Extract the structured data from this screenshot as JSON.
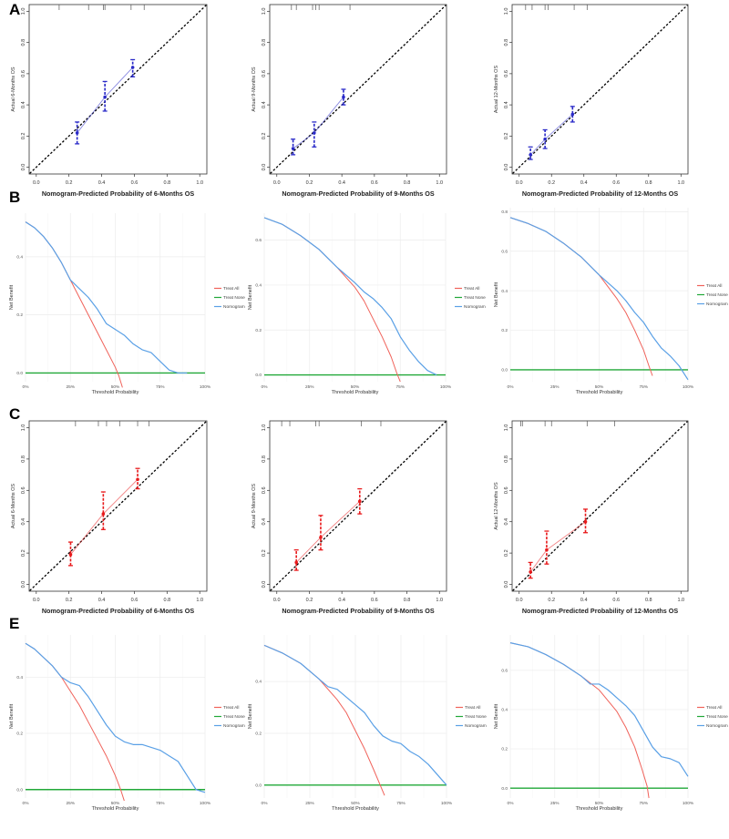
{
  "colors": {
    "blue": "#2a2ac8",
    "red": "#e8191b",
    "treat_all": "#f0625a",
    "treat_none": "#21a838",
    "nomogram": "#5aa0e6",
    "axis": "#333333"
  },
  "chart_data": [
    {
      "id": "A1",
      "panel_letter": "A",
      "type": "scatter",
      "subtype": "calibration",
      "color_key": "blue",
      "xlabel": "Nomogram-Predicted Probability of 6-Months OS",
      "ylabel": "Actual 6-Months OS",
      "xlim": [
        0,
        1
      ],
      "ylim": [
        0,
        1
      ],
      "ticks": [
        "0.0",
        "0.2",
        "0.4",
        "0.6",
        "0.8",
        "1.0"
      ],
      "rug": [
        0.14,
        0.32,
        0.41,
        0.42,
        0.58,
        0.66
      ],
      "points": [
        {
          "x": 0.25,
          "y": 0.22,
          "lo": 0.15,
          "hi": 0.29
        },
        {
          "x": 0.42,
          "y": 0.45,
          "lo": 0.36,
          "hi": 0.55
        },
        {
          "x": 0.59,
          "y": 0.64,
          "lo": 0.58,
          "hi": 0.69
        }
      ]
    },
    {
      "id": "A2",
      "type": "scatter",
      "subtype": "calibration",
      "color_key": "blue",
      "xlabel": "Nomogram-Predicted Probability of 9-Months OS",
      "ylabel": "Actual 9-Months OS",
      "xlim": [
        0,
        1
      ],
      "ylim": [
        0,
        1
      ],
      "ticks": [
        "0.0",
        "0.2",
        "0.4",
        "0.6",
        "0.8",
        "1.0"
      ],
      "rug": [
        0.09,
        0.12,
        0.22,
        0.24,
        0.26,
        0.45
      ],
      "points": [
        {
          "x": 0.1,
          "y": 0.12,
          "lo": 0.08,
          "hi": 0.18
        },
        {
          "x": 0.23,
          "y": 0.22,
          "lo": 0.13,
          "hi": 0.29
        },
        {
          "x": 0.41,
          "y": 0.45,
          "lo": 0.4,
          "hi": 0.5
        }
      ]
    },
    {
      "id": "A3",
      "type": "scatter",
      "subtype": "calibration",
      "color_key": "blue",
      "xlabel": "Nomogram-Predicted Probability of 12-Months OS",
      "ylabel": "Actual 12-Months OS",
      "xlim": [
        0,
        1
      ],
      "ylim": [
        0,
        1
      ],
      "ticks": [
        "0.0",
        "0.2",
        "0.4",
        "0.6",
        "0.8",
        "1.0"
      ],
      "rug": [
        0.04,
        0.08,
        0.16,
        0.18,
        0.34,
        0.42
      ],
      "points": [
        {
          "x": 0.07,
          "y": 0.08,
          "lo": 0.05,
          "hi": 0.13
        },
        {
          "x": 0.16,
          "y": 0.18,
          "lo": 0.12,
          "hi": 0.24
        },
        {
          "x": 0.33,
          "y": 0.34,
          "lo": 0.29,
          "hi": 0.39
        }
      ]
    },
    {
      "id": "B1",
      "panel_letter": "B",
      "type": "line",
      "subtype": "dca",
      "xlabel": "Threshold Probability",
      "ylabel": "Net Benefit",
      "xlim": [
        0,
        1
      ],
      "ylim": [
        -0.03,
        0.55
      ],
      "xticks": [
        "0%",
        "25%",
        "50%",
        "75%",
        "100%"
      ],
      "yticks": [
        0,
        0.2,
        0.4
      ],
      "legend": [
        "Treat All",
        "Treat None",
        "Nomogram"
      ],
      "treat_all": [
        [
          0,
          0.52
        ],
        [
          0.05,
          0.5
        ],
        [
          0.1,
          0.47
        ],
        [
          0.15,
          0.43
        ],
        [
          0.2,
          0.38
        ],
        [
          0.25,
          0.32
        ],
        [
          0.3,
          0.26
        ],
        [
          0.35,
          0.2
        ],
        [
          0.4,
          0.14
        ],
        [
          0.45,
          0.08
        ],
        [
          0.5,
          0.02
        ],
        [
          0.52,
          -0.01
        ],
        [
          0.54,
          -0.05
        ]
      ],
      "treat_none": [
        [
          0,
          0
        ],
        [
          1,
          0
        ]
      ],
      "nomogram": [
        [
          0,
          0.52
        ],
        [
          0.05,
          0.5
        ],
        [
          0.1,
          0.47
        ],
        [
          0.15,
          0.43
        ],
        [
          0.2,
          0.38
        ],
        [
          0.25,
          0.32
        ],
        [
          0.3,
          0.29
        ],
        [
          0.35,
          0.26
        ],
        [
          0.4,
          0.22
        ],
        [
          0.45,
          0.17
        ],
        [
          0.5,
          0.15
        ],
        [
          0.55,
          0.13
        ],
        [
          0.6,
          0.1
        ],
        [
          0.65,
          0.08
        ],
        [
          0.7,
          0.07
        ],
        [
          0.75,
          0.04
        ],
        [
          0.8,
          0.01
        ],
        [
          0.85,
          0.0
        ],
        [
          0.9,
          0.0
        ]
      ]
    },
    {
      "id": "B2",
      "type": "line",
      "subtype": "dca",
      "xlabel": "Threshold Probability",
      "ylabel": "Net Benefit",
      "xlim": [
        0,
        1
      ],
      "ylim": [
        -0.03,
        0.72
      ],
      "xticks": [
        "0%",
        "25%",
        "50%",
        "75%",
        "100%"
      ],
      "yticks": [
        0,
        0.2,
        0.4,
        0.6
      ],
      "legend": [
        "Treat All",
        "Treat None",
        "Nomogram"
      ],
      "treat_all": [
        [
          0,
          0.7
        ],
        [
          0.1,
          0.67
        ],
        [
          0.2,
          0.62
        ],
        [
          0.3,
          0.56
        ],
        [
          0.4,
          0.48
        ],
        [
          0.5,
          0.39
        ],
        [
          0.55,
          0.33
        ],
        [
          0.6,
          0.25
        ],
        [
          0.65,
          0.17
        ],
        [
          0.7,
          0.08
        ],
        [
          0.73,
          0.01
        ],
        [
          0.75,
          -0.03
        ]
      ],
      "treat_none": [
        [
          0,
          0
        ],
        [
          1,
          0
        ]
      ],
      "nomogram": [
        [
          0,
          0.7
        ],
        [
          0.1,
          0.67
        ],
        [
          0.2,
          0.62
        ],
        [
          0.3,
          0.56
        ],
        [
          0.4,
          0.48
        ],
        [
          0.5,
          0.41
        ],
        [
          0.55,
          0.37
        ],
        [
          0.6,
          0.34
        ],
        [
          0.65,
          0.3
        ],
        [
          0.7,
          0.25
        ],
        [
          0.75,
          0.17
        ],
        [
          0.8,
          0.11
        ],
        [
          0.85,
          0.06
        ],
        [
          0.9,
          0.02
        ],
        [
          0.95,
          0.0
        ]
      ]
    },
    {
      "id": "B3",
      "type": "line",
      "subtype": "dca",
      "xlabel": "Threshold Probability",
      "ylabel": "Net Benefit",
      "xlim": [
        0,
        1
      ],
      "ylim": [
        -0.06,
        0.82
      ],
      "xticks": [
        "0%",
        "25%",
        "50%",
        "75%",
        "100%"
      ],
      "yticks": [
        0,
        0.2,
        0.4,
        0.6,
        0.8
      ],
      "legend": [
        "Treat All",
        "Treat None",
        "Nomogram"
      ],
      "treat_all": [
        [
          0,
          0.77
        ],
        [
          0.1,
          0.74
        ],
        [
          0.2,
          0.7
        ],
        [
          0.3,
          0.64
        ],
        [
          0.4,
          0.57
        ],
        [
          0.5,
          0.48
        ],
        [
          0.6,
          0.36
        ],
        [
          0.65,
          0.29
        ],
        [
          0.7,
          0.2
        ],
        [
          0.75,
          0.1
        ],
        [
          0.78,
          0.02
        ],
        [
          0.8,
          -0.03
        ]
      ],
      "treat_none": [
        [
          0,
          0
        ],
        [
          1,
          0
        ]
      ],
      "nomogram": [
        [
          0,
          0.77
        ],
        [
          0.1,
          0.74
        ],
        [
          0.2,
          0.7
        ],
        [
          0.3,
          0.64
        ],
        [
          0.4,
          0.57
        ],
        [
          0.5,
          0.48
        ],
        [
          0.6,
          0.4
        ],
        [
          0.65,
          0.35
        ],
        [
          0.7,
          0.29
        ],
        [
          0.75,
          0.24
        ],
        [
          0.8,
          0.17
        ],
        [
          0.85,
          0.11
        ],
        [
          0.9,
          0.07
        ],
        [
          0.95,
          0.02
        ],
        [
          1.0,
          -0.05
        ]
      ]
    },
    {
      "id": "C1",
      "panel_letter": "C",
      "type": "scatter",
      "subtype": "calibration",
      "color_key": "red",
      "xlabel": "Nomogram-Predicted Probability of 6-Months OS",
      "ylabel": "Actual 6-Months OS",
      "xlim": [
        0,
        1
      ],
      "ylim": [
        0,
        1
      ],
      "ticks": [
        "0.0",
        "0.2",
        "0.4",
        "0.6",
        "0.8",
        "1.0"
      ],
      "rug": [
        0.24,
        0.38,
        0.43,
        0.51,
        0.62,
        0.69
      ],
      "points": [
        {
          "x": 0.21,
          "y": 0.19,
          "lo": 0.12,
          "hi": 0.27
        },
        {
          "x": 0.41,
          "y": 0.45,
          "lo": 0.35,
          "hi": 0.59
        },
        {
          "x": 0.62,
          "y": 0.67,
          "lo": 0.61,
          "hi": 0.74
        }
      ]
    },
    {
      "id": "C2",
      "type": "scatter",
      "subtype": "calibration",
      "color_key": "red",
      "xlabel": "Nomogram-Predicted Probability of 9-Months OS",
      "ylabel": "Actual 9-Months OS",
      "xlim": [
        0,
        1
      ],
      "ylim": [
        0,
        1
      ],
      "ticks": [
        "0.0",
        "0.2",
        "0.4",
        "0.6",
        "0.8",
        "1.0"
      ],
      "rug": [
        0.03,
        0.08,
        0.24,
        0.26,
        0.52,
        0.64
      ],
      "points": [
        {
          "x": 0.12,
          "y": 0.14,
          "lo": 0.09,
          "hi": 0.22
        },
        {
          "x": 0.27,
          "y": 0.3,
          "lo": 0.22,
          "hi": 0.44
        },
        {
          "x": 0.51,
          "y": 0.53,
          "lo": 0.45,
          "hi": 0.61
        }
      ]
    },
    {
      "id": "C3",
      "type": "scatter",
      "subtype": "calibration",
      "color_key": "red",
      "xlabel": "Nomogram-Predicted Probability of 12-Months OS",
      "ylabel": "Actual 12-Months OS",
      "xlim": [
        0,
        1
      ],
      "ylim": [
        0,
        1
      ],
      "ticks": [
        "0.0",
        "0.2",
        "0.4",
        "0.6",
        "0.8",
        "1.0"
      ],
      "rug": [
        0.01,
        0.02,
        0.16,
        0.2,
        0.42,
        0.59
      ],
      "points": [
        {
          "x": 0.07,
          "y": 0.08,
          "lo": 0.04,
          "hi": 0.14
        },
        {
          "x": 0.17,
          "y": 0.22,
          "lo": 0.13,
          "hi": 0.34
        },
        {
          "x": 0.41,
          "y": 0.4,
          "lo": 0.33,
          "hi": 0.48
        }
      ]
    },
    {
      "id": "E1",
      "panel_letter": "E",
      "type": "line",
      "subtype": "dca",
      "xlabel": "Threshold Probability",
      "ylabel": "Net Benefit",
      "xlim": [
        0,
        1
      ],
      "ylim": [
        -0.03,
        0.55
      ],
      "xticks": [
        "0%",
        "25%",
        "50%",
        "75%",
        "100%"
      ],
      "yticks": [
        0,
        0.2,
        0.4
      ],
      "legend": [
        "Treat All",
        "Treat None",
        "Nomogram"
      ],
      "treat_all": [
        [
          0,
          0.52
        ],
        [
          0.05,
          0.5
        ],
        [
          0.1,
          0.47
        ],
        [
          0.15,
          0.44
        ],
        [
          0.2,
          0.4
        ],
        [
          0.25,
          0.35
        ],
        [
          0.3,
          0.3
        ],
        [
          0.35,
          0.24
        ],
        [
          0.4,
          0.18
        ],
        [
          0.45,
          0.12
        ],
        [
          0.5,
          0.05
        ],
        [
          0.53,
          0.0
        ],
        [
          0.55,
          -0.04
        ]
      ],
      "treat_none": [
        [
          0,
          0
        ],
        [
          1,
          0
        ]
      ],
      "nomogram": [
        [
          0,
          0.52
        ],
        [
          0.05,
          0.5
        ],
        [
          0.1,
          0.47
        ],
        [
          0.15,
          0.44
        ],
        [
          0.2,
          0.4
        ],
        [
          0.25,
          0.38
        ],
        [
          0.3,
          0.37
        ],
        [
          0.35,
          0.33
        ],
        [
          0.4,
          0.28
        ],
        [
          0.45,
          0.23
        ],
        [
          0.5,
          0.19
        ],
        [
          0.55,
          0.17
        ],
        [
          0.6,
          0.16
        ],
        [
          0.65,
          0.16
        ],
        [
          0.7,
          0.15
        ],
        [
          0.75,
          0.14
        ],
        [
          0.8,
          0.12
        ],
        [
          0.85,
          0.1
        ],
        [
          0.9,
          0.05
        ],
        [
          0.95,
          0.0
        ],
        [
          1.0,
          -0.01
        ]
      ]
    },
    {
      "id": "E2",
      "type": "line",
      "subtype": "dca",
      "xlabel": "Threshold Probability",
      "ylabel": "Net Benefit",
      "xlim": [
        0,
        1
      ],
      "ylim": [
        -0.05,
        0.58
      ],
      "xticks": [
        "0%",
        "25%",
        "50%",
        "75%",
        "100%"
      ],
      "yticks": [
        0,
        0.2,
        0.4
      ],
      "legend": [
        "Treat All",
        "Treat None",
        "Nomogram"
      ],
      "treat_all": [
        [
          0,
          0.54
        ],
        [
          0.1,
          0.51
        ],
        [
          0.2,
          0.47
        ],
        [
          0.3,
          0.41
        ],
        [
          0.4,
          0.33
        ],
        [
          0.45,
          0.28
        ],
        [
          0.5,
          0.21
        ],
        [
          0.55,
          0.14
        ],
        [
          0.6,
          0.06
        ],
        [
          0.63,
          0.01
        ],
        [
          0.66,
          -0.04
        ]
      ],
      "treat_none": [
        [
          0,
          0
        ],
        [
          1,
          0
        ]
      ],
      "nomogram": [
        [
          0,
          0.54
        ],
        [
          0.1,
          0.51
        ],
        [
          0.2,
          0.47
        ],
        [
          0.3,
          0.41
        ],
        [
          0.35,
          0.38
        ],
        [
          0.4,
          0.37
        ],
        [
          0.45,
          0.34
        ],
        [
          0.5,
          0.31
        ],
        [
          0.55,
          0.28
        ],
        [
          0.6,
          0.23
        ],
        [
          0.65,
          0.19
        ],
        [
          0.7,
          0.17
        ],
        [
          0.75,
          0.16
        ],
        [
          0.8,
          0.13
        ],
        [
          0.85,
          0.11
        ],
        [
          0.9,
          0.08
        ],
        [
          0.95,
          0.04
        ],
        [
          1.0,
          0.0
        ]
      ]
    },
    {
      "id": "E3",
      "type": "line",
      "subtype": "dca",
      "xlabel": "Threshold Probability",
      "ylabel": "Net Benefit",
      "xlim": [
        0,
        1
      ],
      "ylim": [
        -0.05,
        0.78
      ],
      "xticks": [
        "0%",
        "25%",
        "50%",
        "75%",
        "100%"
      ],
      "yticks": [
        0,
        0.2,
        0.4,
        0.6
      ],
      "legend": [
        "Treat All",
        "Treat None",
        "Nomogram"
      ],
      "treat_all": [
        [
          0,
          0.74
        ],
        [
          0.1,
          0.72
        ],
        [
          0.2,
          0.68
        ],
        [
          0.3,
          0.63
        ],
        [
          0.4,
          0.57
        ],
        [
          0.5,
          0.5
        ],
        [
          0.6,
          0.39
        ],
        [
          0.65,
          0.31
        ],
        [
          0.7,
          0.21
        ],
        [
          0.74,
          0.1
        ],
        [
          0.77,
          0.01
        ],
        [
          0.78,
          -0.05
        ]
      ],
      "treat_none": [
        [
          0,
          0
        ],
        [
          1,
          0
        ]
      ],
      "nomogram": [
        [
          0,
          0.74
        ],
        [
          0.1,
          0.72
        ],
        [
          0.2,
          0.68
        ],
        [
          0.3,
          0.63
        ],
        [
          0.4,
          0.57
        ],
        [
          0.45,
          0.53
        ],
        [
          0.5,
          0.53
        ],
        [
          0.55,
          0.5
        ],
        [
          0.6,
          0.46
        ],
        [
          0.65,
          0.42
        ],
        [
          0.7,
          0.37
        ],
        [
          0.75,
          0.29
        ],
        [
          0.8,
          0.21
        ],
        [
          0.85,
          0.16
        ],
        [
          0.9,
          0.15
        ],
        [
          0.95,
          0.13
        ],
        [
          1.0,
          0.06
        ]
      ]
    }
  ]
}
